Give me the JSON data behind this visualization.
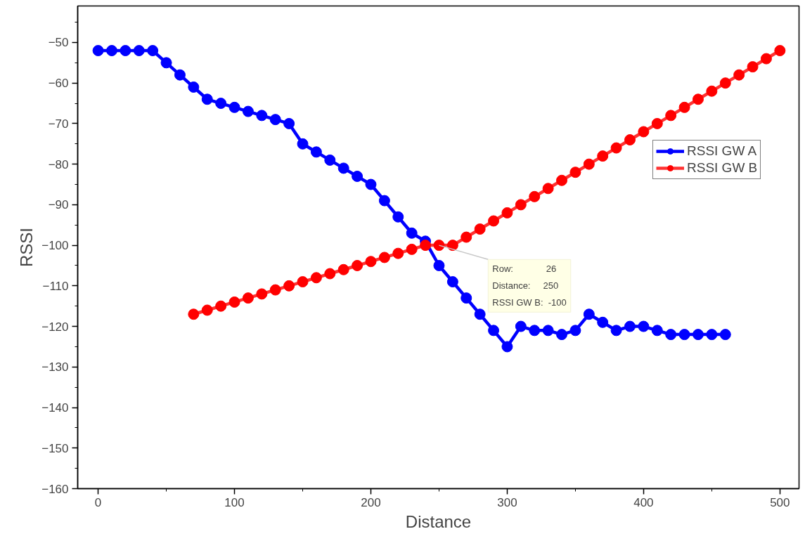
{
  "chart_data": {
    "type": "line",
    "xlabel": "Distance",
    "ylabel": "RSSI",
    "xlim": [
      -15,
      514
    ],
    "ylim": [
      -160,
      -41
    ],
    "xticks": [
      0,
      {
        "value": 50,
        "label": null
      },
      100,
      {
        "value": 150,
        "label": null
      },
      200,
      {
        "value": 250,
        "label": null
      },
      300,
      {
        "value": 350,
        "label": null
      },
      400,
      {
        "value": 450,
        "label": null
      },
      500
    ],
    "yticks": [
      -160,
      {
        "value": -155,
        "label": null
      },
      -150,
      {
        "value": -145,
        "label": null
      },
      -140,
      {
        "value": -135,
        "label": null
      },
      -130,
      {
        "value": -125,
        "label": null
      },
      -120,
      {
        "value": -115,
        "label": null
      },
      -110,
      {
        "value": -105,
        "label": null
      },
      -100,
      {
        "value": -95,
        "label": null
      },
      -90,
      {
        "value": -85,
        "label": null
      },
      -80,
      {
        "value": -75,
        "label": null
      },
      -70,
      {
        "value": -65,
        "label": null
      },
      -60,
      {
        "value": -55,
        "label": null
      },
      -50,
      {
        "value": -45,
        "label": null
      }
    ],
    "marker": "circle",
    "line_style": "solid",
    "grid": false,
    "legend": "top right",
    "annotations": [
      {
        "text": "Row:             26\nDistance:     250\nRSSI GW B:  -100",
        "x": 250,
        "y": -100
      }
    ],
    "series": [
      {
        "name": "RSSI GW A",
        "color": "#0000ff",
        "x": [
          0,
          10,
          20,
          30,
          40,
          50,
          60,
          70,
          80,
          90,
          100,
          110,
          120,
          130,
          140,
          150,
          160,
          170,
          180,
          190,
          200,
          210,
          220,
          230,
          240,
          250,
          260,
          270,
          280,
          290,
          300,
          310,
          320,
          330,
          340,
          350,
          360,
          370,
          380,
          390,
          400,
          410,
          420,
          430,
          440,
          450,
          460
        ],
        "values": [
          -52,
          -52,
          -52,
          -52,
          -52,
          -55,
          -58,
          -61,
          -64,
          -65,
          -66,
          -67,
          -68,
          -69,
          -70,
          -75,
          -77,
          -79,
          -81,
          -83,
          -85,
          -89,
          -93,
          -97,
          -99,
          -105,
          -109,
          -113,
          -117,
          -121,
          -125,
          -120,
          -121,
          -121,
          -122,
          -121,
          -117,
          -119,
          -121,
          -120,
          -120,
          -121,
          -122,
          -122,
          -122,
          -122,
          -122
        ]
      },
      {
        "name": "RSSI GW B",
        "color": "#ff0000",
        "x": [
          70,
          80,
          90,
          100,
          110,
          120,
          130,
          140,
          150,
          160,
          170,
          180,
          190,
          200,
          210,
          220,
          230,
          240,
          250,
          260,
          270,
          280,
          290,
          300,
          310,
          320,
          330,
          340,
          350,
          360,
          370,
          380,
          390,
          400,
          410,
          420,
          430,
          440,
          450,
          460,
          470,
          480,
          490,
          500
        ],
        "values": [
          -117,
          -116,
          -115,
          -114,
          -113,
          -112,
          -111,
          -110,
          -109,
          -108,
          -107,
          -106,
          -105,
          -104,
          -103,
          -102,
          -101,
          -100,
          -100,
          -100,
          -98,
          -96,
          -94,
          -92,
          -90,
          -88,
          -86,
          -84,
          -82,
          -80,
          -78,
          -76,
          -74,
          -72,
          -70,
          -68,
          -66,
          -64,
          -62,
          -60,
          -58,
          -56,
          -54,
          -52
        ]
      }
    ]
  }
}
